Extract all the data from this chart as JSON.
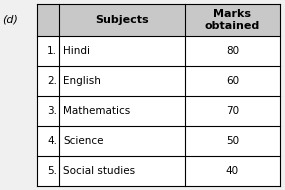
{
  "label_d": "(d)",
  "col1_header": "Subjects",
  "col2_header": "Marks\nobtained",
  "rows": [
    {
      "num": "1.",
      "subject": "Hindi",
      "marks": "80"
    },
    {
      "num": "2.",
      "subject": "English",
      "marks": "60"
    },
    {
      "num": "3.",
      "subject": "Mathematics",
      "marks": "70"
    },
    {
      "num": "4.",
      "subject": "Science",
      "marks": "50"
    },
    {
      "num": "5.",
      "subject": "Social studies",
      "marks": "40"
    }
  ],
  "header_bg": "#c8c8c8",
  "body_bg": "#ffffff",
  "border_color": "#000000",
  "text_color": "#000000",
  "font_size": 7.5,
  "header_font_size": 8.0,
  "label_fontsize": 8.0,
  "fig_bg": "#f0f0f0"
}
